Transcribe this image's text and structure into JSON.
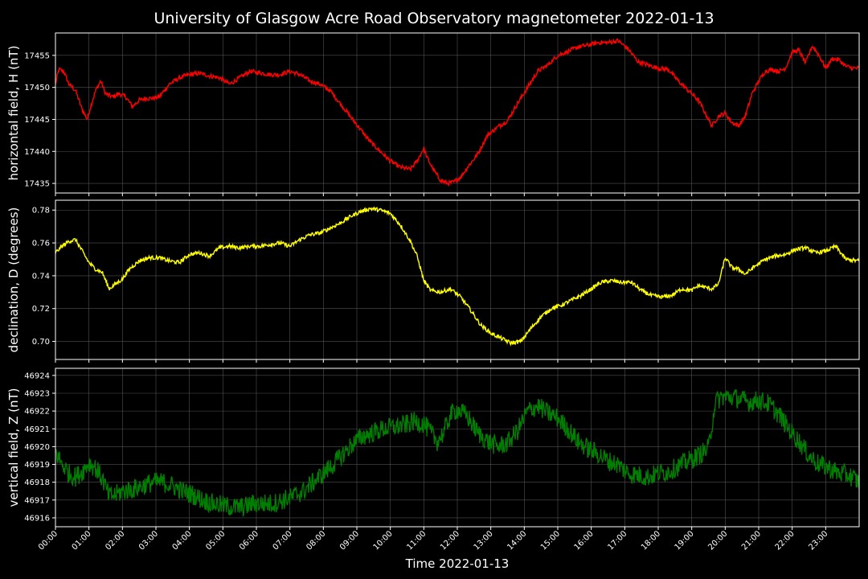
{
  "chart_data": {
    "type": "line",
    "title": "University of Glasgow Acre Road Observatory magnetometer 2022-01-13",
    "xlabel": "Time 2022-01-13",
    "x_ticks": [
      "00:00",
      "01:00",
      "02:00",
      "03:00",
      "04:00",
      "05:00",
      "06:00",
      "07:00",
      "08:00",
      "09:00",
      "10:00",
      "11:00",
      "12:00",
      "13:00",
      "14:00",
      "15:00",
      "16:00",
      "17:00",
      "18:00",
      "19:00",
      "20:00",
      "21:00",
      "22:00",
      "23:00"
    ],
    "xlim_hours": [
      0,
      24
    ],
    "grid": true,
    "panels": [
      {
        "name": "horizontal",
        "ylabel": "horizontal field, H (nT)",
        "color": "#ff0000",
        "ylim": [
          17433.5,
          17458.5
        ],
        "yticks": [
          17435,
          17440,
          17445,
          17450,
          17455
        ],
        "yticks_label": [
          "17435",
          "17440",
          "17445",
          "17450",
          "17455"
        ],
        "noise": 0.35,
        "x": [
          0,
          0.1,
          0.25,
          0.4,
          0.6,
          0.8,
          0.95,
          1.05,
          1.2,
          1.35,
          1.5,
          1.7,
          1.9,
          2.1,
          2.3,
          2.5,
          2.7,
          2.9,
          3.1,
          3.4,
          3.7,
          4,
          4.3,
          4.6,
          4.9,
          5.2,
          5.5,
          5.8,
          6.1,
          6.4,
          6.7,
          7,
          7.3,
          7.6,
          7.9,
          8.2,
          8.5,
          8.8,
          9.1,
          9.4,
          9.7,
          10,
          10.3,
          10.6,
          10.8,
          11,
          11.1,
          11.3,
          11.5,
          11.7,
          11.9,
          12.1,
          12.3,
          12.6,
          12.9,
          13.2,
          13.5,
          13.8,
          14.1,
          14.4,
          14.7,
          15,
          15.3,
          15.6,
          15.9,
          16.2,
          16.5,
          16.8,
          17.1,
          17.4,
          17.7,
          18,
          18.3,
          18.6,
          18.9,
          19.2,
          19.4,
          19.6,
          19.8,
          20,
          20.2,
          20.4,
          20.6,
          20.8,
          21,
          21.2,
          21.4,
          21.6,
          21.8,
          22,
          22.2,
          22.4,
          22.6,
          22.8,
          23,
          23.2,
          23.4,
          23.6,
          23.8,
          24
        ],
        "y": [
          17450.5,
          17452.8,
          17452.5,
          17450.5,
          17449.5,
          17446.5,
          17445,
          17447,
          17449.5,
          17451,
          17449,
          17448.5,
          17449,
          17448.5,
          17447,
          17448,
          17448.3,
          17448.3,
          17448.5,
          17450.5,
          17451.5,
          17452,
          17452.2,
          17451.8,
          17451.5,
          17450.5,
          17451.5,
          17452.5,
          17452.3,
          17452,
          17452,
          17452.5,
          17452,
          17451,
          17450.5,
          17449.5,
          17447.5,
          17445.5,
          17443.5,
          17441.5,
          17440,
          17438.5,
          17437.5,
          17437.2,
          17438.5,
          17440.5,
          17439,
          17437,
          17435.5,
          17435,
          17435.2,
          17436,
          17437.5,
          17439.5,
          17442.5,
          17443.8,
          17444.8,
          17447.5,
          17450,
          17452.5,
          17453.5,
          17455,
          17455.6,
          17456.3,
          17456.6,
          17457,
          17457,
          17457.3,
          17456,
          17454,
          17453.5,
          17453,
          17452.8,
          17451,
          17449.5,
          17448,
          17446,
          17444,
          17445.5,
          17446,
          17444.5,
          17444,
          17445.5,
          17449,
          17451,
          17452.5,
          17452.8,
          17452.5,
          17453,
          17455.5,
          17455.8,
          17453.8,
          17456.5,
          17455,
          17453,
          17454.5,
          17454.3,
          17453.3,
          17453,
          17453
        ]
      },
      {
        "name": "declination",
        "ylabel": "declination, D (degrees)",
        "color": "#ffff00",
        "ylim": [
          0.689,
          0.786
        ],
        "yticks": [
          0.7,
          0.72,
          0.74,
          0.76,
          0.78
        ],
        "yticks_label": [
          "0.70",
          "0.72",
          "0.74",
          "0.76",
          "0.78"
        ],
        "noise": 0.0012,
        "x": [
          0,
          0.2,
          0.4,
          0.6,
          0.8,
          1,
          1.2,
          1.4,
          1.6,
          1.8,
          2,
          2.2,
          2.5,
          2.8,
          3.1,
          3.4,
          3.7,
          4,
          4.3,
          4.6,
          4.9,
          5.2,
          5.5,
          5.8,
          6.1,
          6.4,
          6.7,
          7,
          7.3,
          7.6,
          7.9,
          8.2,
          8.5,
          8.8,
          9.1,
          9.4,
          9.7,
          10,
          10.3,
          10.6,
          10.8,
          11,
          11.2,
          11.5,
          11.8,
          12.1,
          12.4,
          12.7,
          13,
          13.3,
          13.6,
          13.9,
          14.2,
          14.5,
          14.8,
          15.1,
          15.4,
          15.7,
          16,
          16.3,
          16.6,
          16.9,
          17.2,
          17.5,
          17.8,
          18.1,
          18.4,
          18.7,
          19,
          19.2,
          19.4,
          19.6,
          19.8,
          20,
          20.2,
          20.4,
          20.6,
          20.9,
          21.2,
          21.5,
          21.8,
          22.1,
          22.4,
          22.7,
          23,
          23.3,
          23.6,
          24
        ],
        "y": [
          0.754,
          0.758,
          0.761,
          0.762,
          0.755,
          0.748,
          0.744,
          0.742,
          0.732,
          0.735,
          0.738,
          0.744,
          0.749,
          0.751,
          0.751,
          0.749,
          0.748,
          0.753,
          0.754,
          0.752,
          0.757,
          0.758,
          0.757,
          0.758,
          0.758,
          0.759,
          0.76,
          0.758,
          0.762,
          0.765,
          0.766,
          0.769,
          0.772,
          0.776,
          0.779,
          0.781,
          0.78,
          0.778,
          0.771,
          0.761,
          0.752,
          0.737,
          0.731,
          0.73,
          0.732,
          0.727,
          0.719,
          0.71,
          0.705,
          0.702,
          0.699,
          0.7,
          0.708,
          0.715,
          0.72,
          0.722,
          0.725,
          0.728,
          0.732,
          0.736,
          0.737,
          0.736,
          0.736,
          0.731,
          0.728,
          0.727,
          0.728,
          0.732,
          0.731,
          0.734,
          0.733,
          0.732,
          0.735,
          0.751,
          0.745,
          0.744,
          0.741,
          0.746,
          0.75,
          0.752,
          0.753,
          0.756,
          0.757,
          0.754,
          0.755,
          0.758,
          0.75,
          0.749
        ]
      },
      {
        "name": "vertical",
        "ylabel": "vertical field, Z (nT)",
        "color": "#008000",
        "ylim": [
          46915.5,
          46924.4
        ],
        "yticks": [
          46916,
          46917,
          46918,
          46919,
          46920,
          46921,
          46922,
          46923,
          46924
        ],
        "yticks_label": [
          "46916",
          "46917",
          "46918",
          "46919",
          "46920",
          "46921",
          "46922",
          "46923",
          "46924"
        ],
        "noise": 0.35,
        "x": [
          0,
          0.2,
          0.4,
          0.6,
          0.8,
          1,
          1.2,
          1.4,
          1.6,
          1.8,
          2,
          2.3,
          2.6,
          2.9,
          3.2,
          3.5,
          3.8,
          4.1,
          4.4,
          4.7,
          5,
          5.3,
          5.6,
          5.9,
          6.2,
          6.5,
          6.8,
          7.1,
          7.4,
          7.7,
          8,
          8.3,
          8.6,
          8.9,
          9.2,
          9.5,
          9.8,
          10.1,
          10.4,
          10.7,
          11,
          11.2,
          11.4,
          11.6,
          11.8,
          12,
          12.3,
          12.6,
          12.9,
          13.2,
          13.5,
          13.8,
          14.1,
          14.4,
          14.7,
          15,
          15.3,
          15.6,
          15.9,
          16.2,
          16.5,
          16.8,
          17.1,
          17.4,
          17.7,
          18,
          18.3,
          18.6,
          18.9,
          19.2,
          19.5,
          19.7,
          19.9,
          20.1,
          20.4,
          20.7,
          21,
          21.3,
          21.6,
          21.9,
          22.2,
          22.5,
          22.8,
          23.1,
          23.4,
          23.7,
          24
        ],
        "y": [
          46919.7,
          46919,
          46918.5,
          46918.3,
          46918.6,
          46919.1,
          46918.8,
          46918.2,
          46917.2,
          46917.3,
          46917.5,
          46917.6,
          46917.8,
          46918,
          46918,
          46917.8,
          46917.5,
          46917.3,
          46917,
          46916.8,
          46916.7,
          46916.6,
          46916.6,
          46916.8,
          46916.8,
          46916.8,
          46917,
          46917.2,
          46917.5,
          46918,
          46918.5,
          46919,
          46919.6,
          46920.2,
          46920.6,
          46920.8,
          46921,
          46921.1,
          46921.2,
          46921.4,
          46921.3,
          46920.8,
          46920.3,
          46920.8,
          46921.8,
          46922.1,
          46921.7,
          46920.8,
          46920.3,
          46920,
          46920.2,
          46920.9,
          46922,
          46922.3,
          46921.9,
          46921.6,
          46921,
          46920.3,
          46919.9,
          46919.6,
          46919.2,
          46919,
          46918.5,
          46918.4,
          46918.3,
          46918.5,
          46918.6,
          46918.9,
          46919.2,
          46919.5,
          46919.9,
          46922.5,
          46922.8,
          46922.8,
          46922.7,
          46922.5,
          46922.6,
          46922.4,
          46921.8,
          46921,
          46920.3,
          46919.5,
          46919,
          46918.8,
          46918.5,
          46918.4,
          46918
        ]
      }
    ]
  }
}
